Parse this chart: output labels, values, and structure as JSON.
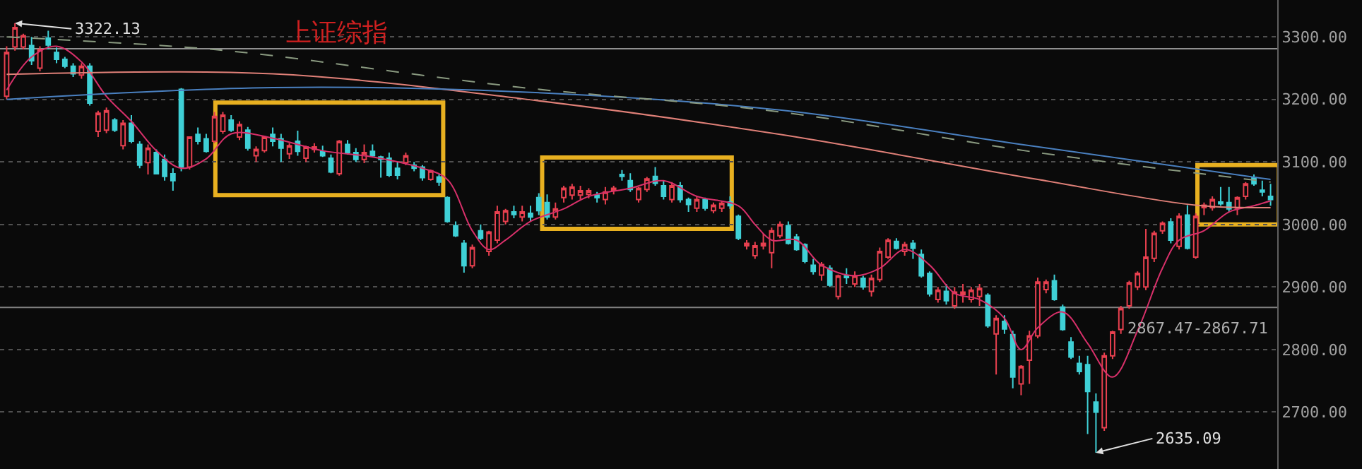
{
  "chart_data": {
    "type": "candlestick",
    "title": "上证综指",
    "categories": [
      null,
      null,
      null,
      null,
      null,
      null,
      null,
      null,
      null,
      null,
      null,
      null,
      null,
      null,
      null,
      null,
      null,
      null,
      null,
      null,
      null,
      null,
      null,
      null,
      null,
      null,
      null,
      null,
      null,
      null,
      null,
      null,
      null,
      null,
      null,
      null,
      null,
      null,
      null,
      null,
      null,
      null,
      null,
      null,
      null,
      null,
      null,
      null,
      null,
      null,
      null,
      null,
      null,
      null,
      null,
      null,
      null,
      null,
      null,
      null,
      null,
      null,
      null,
      null,
      null,
      null,
      null,
      null,
      null,
      null,
      null,
      null,
      null,
      null,
      null,
      null,
      null,
      null,
      null,
      null,
      null,
      null,
      null,
      null,
      null,
      null,
      null,
      null,
      null,
      null,
      null,
      null,
      null,
      null,
      null,
      null,
      null,
      null,
      null,
      null,
      null,
      null,
      null,
      null,
      null,
      null,
      null,
      null,
      null,
      null,
      null,
      null,
      null,
      null,
      null,
      null,
      null,
      null,
      null,
      null,
      null,
      null,
      null,
      null,
      null,
      null,
      null,
      null,
      null,
      null,
      null,
      null,
      null,
      null,
      null,
      null,
      null,
      null,
      null,
      null,
      null,
      null,
      null,
      null,
      null,
      null,
      null,
      null,
      null,
      null,
      null,
      null,
      null
    ],
    "ohlc": [
      [
        3205,
        3285,
        3200,
        3275
      ],
      [
        3284,
        3322.13,
        3278,
        3315
      ],
      [
        3284,
        3305,
        3280,
        3302
      ],
      [
        3286,
        3300,
        3255,
        3262
      ],
      [
        3250,
        3285,
        3245,
        3280
      ],
      [
        3298,
        3310,
        3280,
        3287
      ],
      [
        3275,
        3283,
        3258,
        3264
      ],
      [
        3264,
        3268,
        3250,
        3253
      ],
      [
        3253,
        3258,
        3236,
        3241
      ],
      [
        3239,
        3258,
        3233,
        3253
      ],
      [
        3253,
        3258,
        3190,
        3194
      ],
      [
        3149,
        3182,
        3140,
        3178
      ],
      [
        3151,
        3187,
        3146,
        3182
      ],
      [
        3167,
        3170,
        3148,
        3151
      ],
      [
        3126,
        3167,
        3120,
        3162
      ],
      [
        3162,
        3175,
        3130,
        3133
      ],
      [
        3128,
        3133,
        3090,
        3095
      ],
      [
        3099,
        3128,
        3080,
        3122
      ],
      [
        3115,
        3120,
        3080,
        3081
      ],
      [
        3104,
        3112,
        3070,
        3077
      ],
      [
        3081,
        3090,
        3054,
        3070
      ],
      [
        3216,
        3218,
        3085,
        3092
      ],
      [
        3092,
        3140,
        3088,
        3140
      ],
      [
        3144,
        3155,
        3128,
        3133
      ],
      [
        3137,
        3145,
        3115,
        3117
      ],
      [
        3133,
        3180,
        3130,
        3173
      ],
      [
        3149,
        3180,
        3145,
        3175
      ],
      [
        3167,
        3175,
        3148,
        3151
      ],
      [
        3140,
        3165,
        3135,
        3160
      ],
      [
        3151,
        3156,
        3118,
        3122
      ],
      [
        3110,
        3125,
        3100,
        3120
      ],
      [
        3118,
        3142,
        3115,
        3140
      ],
      [
        3144,
        3155,
        3125,
        3133
      ],
      [
        3137,
        3145,
        3100,
        3122
      ],
      [
        3113,
        3130,
        3105,
        3126
      ],
      [
        3133,
        3150,
        3110,
        3117
      ],
      [
        3106,
        3126,
        3100,
        3124
      ],
      [
        3120,
        3130,
        3115,
        3124
      ],
      [
        3117,
        3126,
        3108,
        3110
      ],
      [
        3106,
        3112,
        3082,
        3084
      ],
      [
        3081,
        3135,
        3078,
        3133
      ],
      [
        3128,
        3135,
        3112,
        3115
      ],
      [
        3115,
        3122,
        3100,
        3104
      ],
      [
        3104,
        3128,
        3098,
        3115
      ],
      [
        3117,
        3128,
        3108,
        3110
      ],
      [
        3108,
        3110,
        3075,
        3104
      ],
      [
        3106,
        3115,
        3076,
        3079
      ],
      [
        3090,
        3100,
        3072,
        3079
      ],
      [
        3099,
        3115,
        3095,
        3110
      ],
      [
        3095,
        3100,
        3085,
        3090
      ],
      [
        3092,
        3095,
        3070,
        3075
      ],
      [
        3072,
        3088,
        3070,
        3086
      ],
      [
        3076,
        3080,
        3062,
        3068
      ],
      [
        3043,
        3045,
        3003,
        3005
      ],
      [
        2998,
        3005,
        2980,
        2982
      ],
      [
        2970,
        2975,
        2923,
        2934
      ],
      [
        2934,
        2968,
        2930,
        2963
      ],
      [
        2990,
        3000,
        2975,
        2978
      ],
      [
        2957,
        2990,
        2950,
        2988
      ],
      [
        2975,
        3030,
        2970,
        3020
      ],
      [
        3005,
        3025,
        3000,
        3022
      ],
      [
        3020,
        3030,
        3010,
        3016
      ],
      [
        3012,
        3030,
        3005,
        3020
      ],
      [
        3018,
        3030,
        3005,
        3012
      ],
      [
        3043,
        3050,
        3015,
        3022
      ],
      [
        3035,
        3048,
        3008,
        3012
      ],
      [
        3012,
        3035,
        3008,
        3025
      ],
      [
        3043,
        3062,
        3035,
        3058
      ],
      [
        3047,
        3065,
        3040,
        3060
      ],
      [
        3047,
        3062,
        3040,
        3054
      ],
      [
        3048,
        3058,
        3042,
        3054
      ],
      [
        3047,
        3052,
        3035,
        3043
      ],
      [
        3040,
        3060,
        3032,
        3052
      ],
      [
        3054,
        3062,
        3048,
        3058
      ],
      [
        3080,
        3087,
        3070,
        3077
      ],
      [
        3070,
        3082,
        3052,
        3056
      ],
      [
        3040,
        3060,
        3035,
        3058
      ],
      [
        3056,
        3076,
        3052,
        3073
      ],
      [
        3077,
        3092,
        3062,
        3066
      ],
      [
        3062,
        3070,
        3040,
        3045
      ],
      [
        3040,
        3068,
        3035,
        3062
      ],
      [
        3062,
        3068,
        3035,
        3040
      ],
      [
        3040,
        3043,
        3020,
        3032
      ],
      [
        3026,
        3045,
        3020,
        3040
      ],
      [
        3040,
        3043,
        3022,
        3026
      ],
      [
        3022,
        3035,
        3018,
        3031
      ],
      [
        3026,
        3038,
        3020,
        3034
      ],
      [
        3036,
        3045,
        3025,
        3030
      ],
      [
        3013,
        3016,
        2975,
        2978
      ],
      [
        2966,
        2975,
        2960,
        2970
      ],
      [
        2950,
        2972,
        2945,
        2966
      ],
      [
        2966,
        2985,
        2960,
        2970
      ],
      [
        2955,
        2995,
        2930,
        2990
      ],
      [
        2982,
        3005,
        2978,
        3000
      ],
      [
        2998,
        3005,
        2968,
        2970
      ],
      [
        2980,
        2985,
        2958,
        2960
      ],
      [
        2968,
        2970,
        2938,
        2941
      ],
      [
        2935,
        2945,
        2920,
        2925
      ],
      [
        2919,
        2940,
        2910,
        2936
      ],
      [
        2930,
        2935,
        2900,
        2903
      ],
      [
        2885,
        2920,
        2880,
        2918
      ],
      [
        2918,
        2930,
        2905,
        2915
      ],
      [
        2905,
        2925,
        2900,
        2918
      ],
      [
        2914,
        2918,
        2896,
        2900
      ],
      [
        2893,
        2920,
        2885,
        2914
      ],
      [
        2912,
        2963,
        2908,
        2957
      ],
      [
        2948,
        2978,
        2945,
        2975
      ],
      [
        2973,
        2978,
        2960,
        2962
      ],
      [
        2957,
        2972,
        2950,
        2968
      ],
      [
        2970,
        2975,
        2945,
        2962
      ],
      [
        2952,
        2960,
        2915,
        2918
      ],
      [
        2922,
        2925,
        2885,
        2889
      ],
      [
        2880,
        2900,
        2875,
        2895
      ],
      [
        2893,
        2905,
        2872,
        2878
      ],
      [
        2870,
        2900,
        2865,
        2892
      ],
      [
        2888,
        2905,
        2875,
        2892
      ],
      [
        2880,
        2900,
        2875,
        2895
      ],
      [
        2885,
        2905,
        2870,
        2898
      ],
      [
        2887,
        2890,
        2835,
        2838
      ],
      [
        2825,
        2855,
        2760,
        2850
      ],
      [
        2845,
        2855,
        2825,
        2833
      ],
      [
        2824,
        2830,
        2738,
        2756
      ],
      [
        2745,
        2775,
        2727,
        2773
      ],
      [
        2783,
        2830,
        2745,
        2822
      ],
      [
        2822,
        2915,
        2818,
        2908
      ],
      [
        2896,
        2912,
        2890,
        2908
      ],
      [
        2910,
        2920,
        2878,
        2880
      ],
      [
        2868,
        2872,
        2830,
        2832
      ],
      [
        2812,
        2820,
        2785,
        2788
      ],
      [
        2778,
        2790,
        2760,
        2765
      ],
      [
        2776,
        2790,
        2665,
        2733
      ],
      [
        2716,
        2730,
        2635.09,
        2700
      ],
      [
        2675,
        2795,
        2670,
        2790
      ],
      [
        2790,
        2830,
        2785,
        2828
      ],
      [
        2832,
        2870,
        2825,
        2866
      ],
      [
        2870,
        2910,
        2865,
        2907
      ],
      [
        2900,
        2925,
        2895,
        2922
      ],
      [
        2900,
        2993,
        2895,
        2948
      ],
      [
        2946,
        2990,
        2940,
        2986
      ],
      [
        2990,
        3005,
        2985,
        3002
      ],
      [
        3004,
        3010,
        2970,
        2975
      ],
      [
        2965,
        3018,
        2960,
        3013
      ],
      [
        3015,
        3031,
        2960,
        2962
      ],
      [
        2948,
        3018,
        2945,
        3013
      ],
      [
        3027,
        3035,
        3015,
        3031
      ],
      [
        3027,
        3045,
        3022,
        3040
      ],
      [
        3036,
        3060,
        3030,
        3033
      ],
      [
        3035,
        3060,
        3020,
        3025
      ],
      [
        3026,
        3045,
        3015,
        3043
      ],
      [
        3045,
        3068,
        3040,
        3065
      ],
      [
        3075,
        3080,
        3062,
        3065
      ],
      [
        3055,
        3070,
        3045,
        3052
      ],
      [
        3045,
        3065,
        3030,
        3040
      ]
    ],
    "series": [
      {
        "type": "line",
        "color": "#d8306a",
        "values": [
          3215,
          null,
          null,
          3268,
          null,
          null,
          3285,
          null,
          null,
          3260,
          null,
          null,
          3205,
          null,
          null,
          3165,
          null,
          null,
          3118,
          null,
          null,
          3090,
          null,
          null,
          3105,
          null,
          null,
          3145,
          null,
          null,
          null,
          null,
          3138,
          null,
          null,
          null,
          null,
          null,
          3118,
          null,
          null,
          null,
          null,
          null,
          3108,
          null,
          null,
          null,
          null,
          null,
          3090,
          null,
          null,
          3072,
          null,
          null,
          2990,
          null,
          2960,
          null,
          2975,
          null,
          null,
          3005,
          null,
          null,
          null,
          3025,
          null,
          null,
          3045,
          null,
          null,
          null,
          null,
          3058,
          null,
          null,
          null,
          3070,
          null,
          null,
          null,
          3045,
          null,
          null,
          null,
          null,
          3030,
          null,
          3000,
          null,
          2975,
          null,
          null,
          2975,
          null,
          null,
          2935,
          null,
          null,
          null,
          2918,
          null,
          null,
          2930,
          null,
          null,
          2960,
          null,
          null,
          2935,
          null,
          null,
          2890,
          null,
          null,
          2880,
          null,
          null,
          2850,
          null,
          2800,
          null,
          2835,
          null,
          null,
          2860,
          null,
          null,
          2810,
          null,
          null,
          2756,
          null,
          null,
          2830,
          null,
          null,
          2930,
          null,
          2975,
          null,
          null,
          2990,
          null,
          null,
          3020,
          null,
          null,
          3030,
          null,
          3038
        ]
      },
      {
        "type": "line",
        "color": "#e08078",
        "values": [
          3240,
          null,
          null,
          null,
          null,
          null,
          null,
          null,
          null,
          null,
          null,
          null,
          null,
          null,
          null,
          null,
          null,
          null,
          null,
          null,
          null,
          null,
          null,
          null,
          null,
          null,
          null,
          null,
          null,
          null,
          null,
          null,
          3241,
          null,
          null,
          null,
          null,
          null,
          null,
          null,
          null,
          null,
          null,
          null,
          null,
          null,
          null,
          null,
          null,
          null,
          null,
          null,
          null,
          null,
          null,
          null,
          null,
          null,
          null,
          null,
          null,
          null,
          3201,
          null,
          null,
          null,
          null,
          null,
          null,
          null,
          null,
          null,
          null,
          null,
          null,
          null,
          null,
          null,
          null,
          null,
          null,
          null,
          null,
          null,
          null,
          null,
          null,
          null,
          null,
          null,
          null,
          null,
          null,
          3144,
          null,
          null,
          null,
          null,
          null,
          null,
          null,
          null,
          null,
          null,
          null,
          null,
          null,
          null,
          null,
          null,
          null,
          null,
          null,
          null,
          null,
          null,
          null,
          null,
          null,
          null,
          null,
          null,
          null,
          null,
          3072,
          null,
          null,
          null,
          null,
          null,
          null,
          null,
          null,
          null,
          null,
          null,
          null,
          null,
          null,
          null,
          null,
          null,
          null,
          3031,
          null,
          null,
          null,
          null,
          null,
          null,
          null,
          null,
          3027
        ]
      },
      {
        "type": "line",
        "color": "#4a80c0",
        "values": [
          3200,
          null,
          null,
          null,
          null,
          null,
          null,
          null,
          null,
          null,
          null,
          null,
          null,
          null,
          null,
          null,
          null,
          null,
          null,
          null,
          null,
          null,
          null,
          null,
          null,
          null,
          null,
          null,
          null,
          null,
          null,
          null,
          3219,
          null,
          null,
          null,
          null,
          null,
          null,
          null,
          null,
          null,
          null,
          null,
          null,
          null,
          null,
          null,
          null,
          null,
          null,
          null,
          null,
          null,
          null,
          null,
          null,
          null,
          null,
          null,
          null,
          null,
          3212,
          null,
          null,
          null,
          null,
          null,
          null,
          null,
          null,
          null,
          null,
          null,
          null,
          null,
          null,
          null,
          null,
          null,
          null,
          null,
          null,
          null,
          null,
          null,
          null,
          null,
          null,
          null,
          null,
          null,
          null,
          3183,
          null,
          null,
          null,
          null,
          null,
          null,
          null,
          null,
          null,
          null,
          null,
          null,
          null,
          null,
          null,
          null,
          null,
          null,
          null,
          null,
          null,
          null,
          null,
          null,
          null,
          null,
          null,
          null,
          3128,
          null,
          null,
          null,
          null,
          null,
          null,
          null,
          null,
          null,
          null,
          null,
          null,
          null,
          null,
          null,
          null,
          null,
          null,
          null,
          null,
          null,
          null,
          null,
          null,
          null,
          null,
          null,
          null,
          null,
          3072
        ]
      },
      {
        "type": "line",
        "color": "#8a9a80",
        "line_style": "dashed",
        "values": [
          3300,
          null,
          null,
          null,
          null,
          null,
          null,
          null,
          null,
          null,
          null,
          null,
          null,
          null,
          null,
          null,
          null,
          null,
          null,
          null,
          null,
          3284,
          null,
          null,
          null,
          null,
          null,
          null,
          null,
          null,
          3273,
          null,
          null,
          null,
          null,
          null,
          null,
          null,
          null,
          null,
          null,
          null,
          null,
          null,
          null,
          null,
          null,
          null,
          null,
          null,
          null,
          null,
          null,
          null,
          null,
          null,
          null,
          null,
          null,
          null,
          null,
          null,
          3219,
          null,
          null,
          null,
          null,
          null,
          null,
          null,
          null,
          null,
          null,
          null,
          null,
          null,
          null,
          null,
          null,
          null,
          null,
          null,
          null,
          null,
          null,
          null,
          null,
          null,
          null,
          null,
          null,
          null,
          null,
          3180,
          null,
          null,
          null,
          null,
          null,
          null,
          null,
          null,
          null,
          null,
          null,
          null,
          null,
          null,
          null,
          null,
          null,
          null,
          null,
          null,
          null,
          null,
          null,
          null,
          null,
          null,
          null,
          null,
          null,
          null,
          3115,
          null,
          null,
          null,
          null,
          null,
          null,
          null,
          null,
          null,
          null,
          null,
          null,
          null,
          null,
          null,
          null,
          null,
          null,
          null,
          null,
          null,
          null,
          null,
          null,
          null,
          null,
          null,
          3068
        ]
      }
    ],
    "ylim": [
      2609,
      3359
    ],
    "yticks": [
      {
        "value": 2700,
        "label": "2700.00"
      },
      {
        "value": 2800,
        "label": "2800.00"
      },
      {
        "value": 2900,
        "label": "2900.00"
      },
      {
        "value": 3000,
        "label": "3000.00"
      },
      {
        "value": 3100,
        "label": "3100.00"
      },
      {
        "value": 3200,
        "label": "3200.00"
      },
      {
        "value": 3300,
        "label": "3300.00"
      }
    ],
    "grid": "y",
    "tick_labels": "y",
    "ref_lines": [
      {
        "axis": "y",
        "value": 3281,
        "color": "#909090"
      },
      {
        "axis": "y",
        "value": 2867.47,
        "label": "2867.47-2867.71",
        "color": "#808080"
      }
    ],
    "annotations": [
      "3322.13",
      "2635.09"
    ]
  }
}
